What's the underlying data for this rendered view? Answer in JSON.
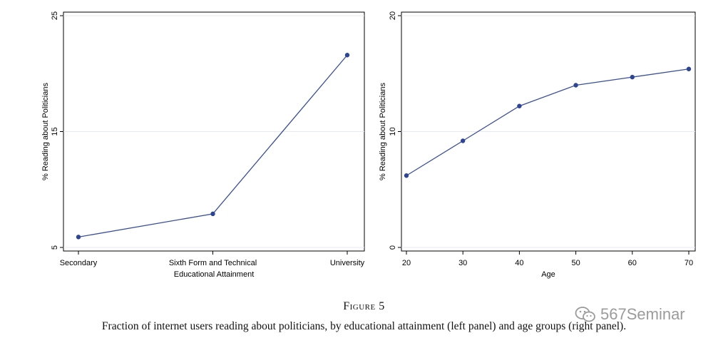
{
  "figure": {
    "title": "Figure 5",
    "caption": "Fraction of internet users reading about politicians, by educational attainment (left panel) and age groups (right panel)."
  },
  "watermark": {
    "text": "567Seminar",
    "icon": "wechat-icon"
  },
  "colors": {
    "line": "#3a4f9a",
    "marker": "#2e4594",
    "grid": "#e6eaf0",
    "axis": "#000000"
  },
  "chart_data": [
    {
      "type": "line",
      "title": "",
      "xlabel": "Educational Attainment",
      "ylabel": "% Reading about Politicians",
      "categories": [
        "Secondary",
        "Sixth Form and Technical",
        "University"
      ],
      "values": [
        5.9,
        7.9,
        21.6
      ],
      "ylim": [
        5,
        25
      ],
      "yticks": [
        5,
        15,
        25
      ],
      "grid": true
    },
    {
      "type": "line",
      "title": "",
      "xlabel": "Age",
      "ylabel": "% Reading about Politicians",
      "x": [
        20,
        30,
        40,
        50,
        60,
        70
      ],
      "values": [
        6.2,
        9.2,
        12.2,
        14.0,
        14.7,
        15.4
      ],
      "xlim": [
        20,
        70
      ],
      "ylim": [
        0,
        20
      ],
      "yticks": [
        0,
        10,
        20
      ],
      "xticks": [
        20,
        30,
        40,
        50,
        60,
        70
      ],
      "grid": true
    }
  ]
}
